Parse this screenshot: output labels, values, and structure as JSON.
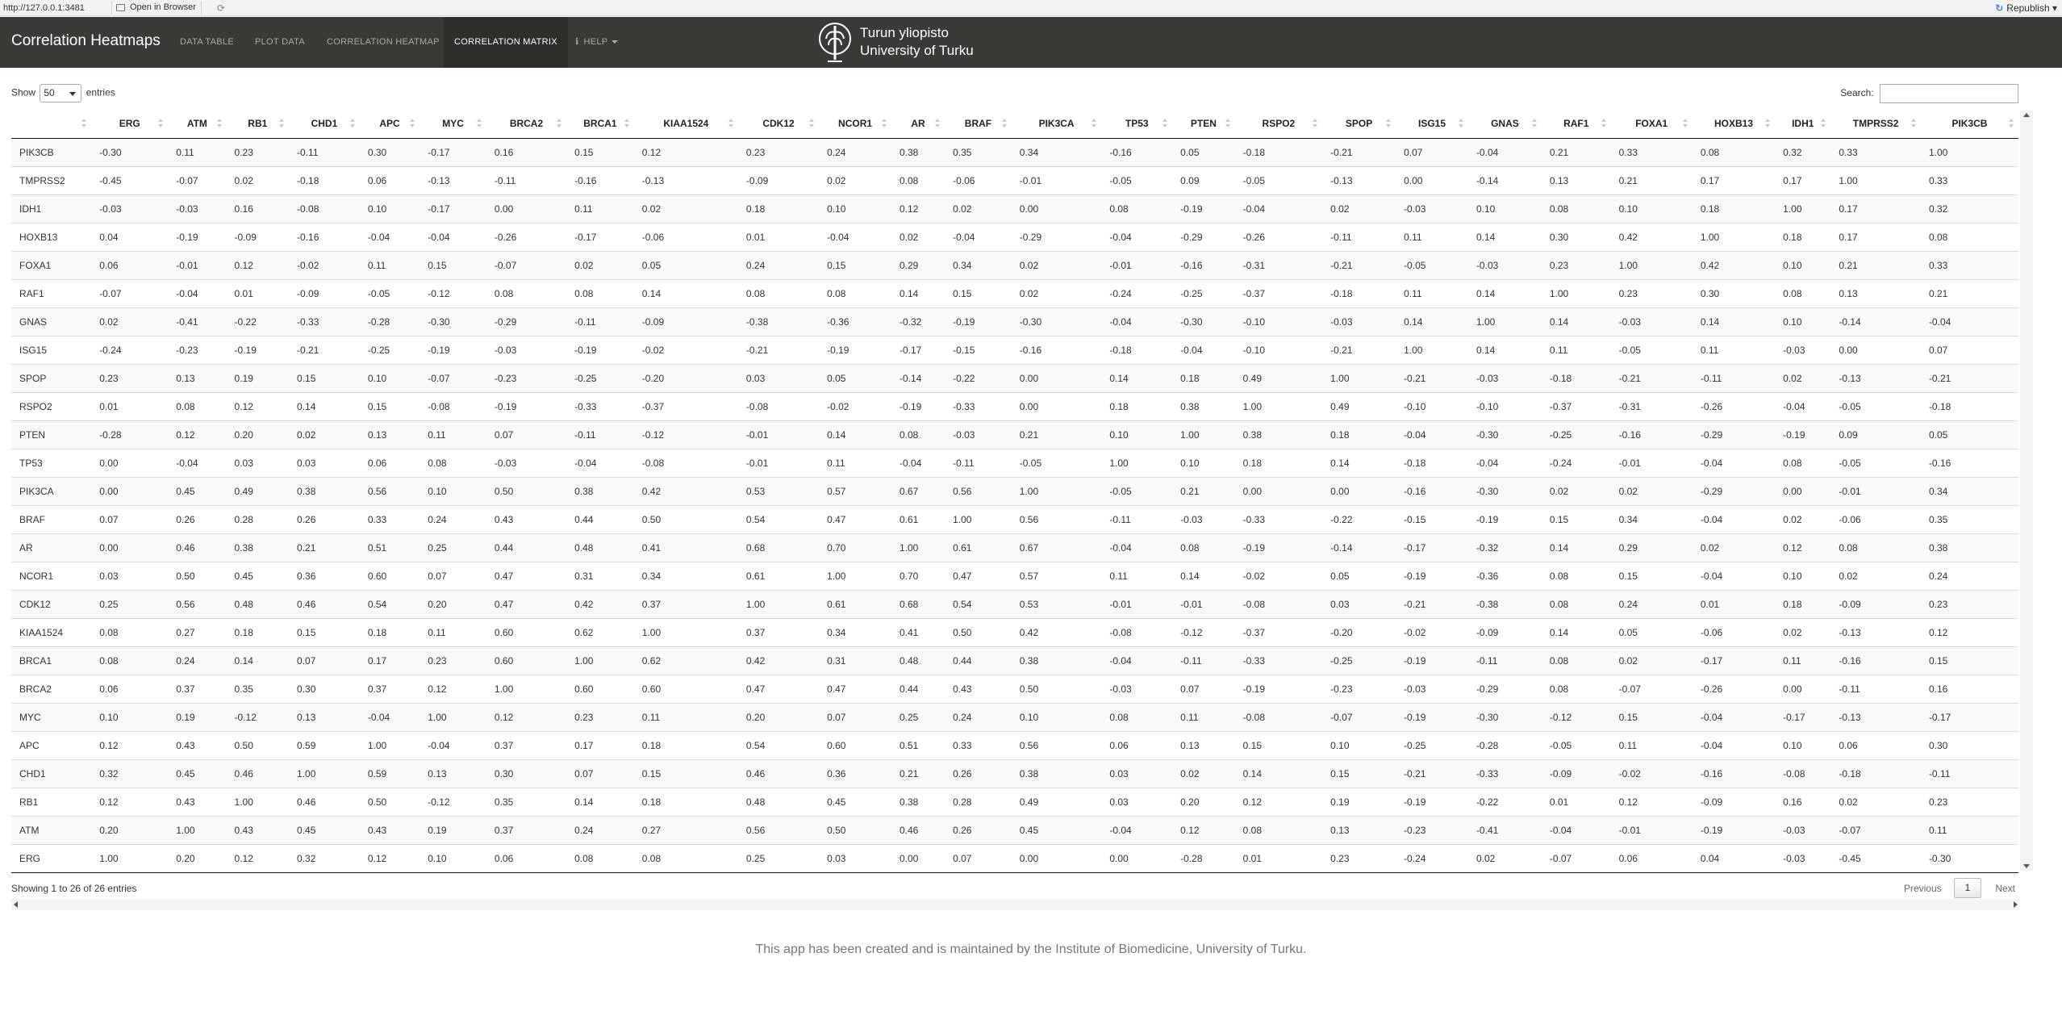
{
  "browser": {
    "url": "http://127.0.0.1:3481",
    "open_in_browser": "Open in Browser",
    "republish": "Republish"
  },
  "navbar": {
    "brand": "Correlation Heatmaps",
    "tabs": [
      {
        "label": "DATA TABLE"
      },
      {
        "label": "PLOT DATA"
      },
      {
        "label": "CORRELATION HEATMAP"
      },
      {
        "label": "CORRELATION MATRIX"
      },
      {
        "label": "HELP"
      }
    ],
    "logo_line1": "Turun yliopisto",
    "logo_line2": "University of Turku"
  },
  "controls": {
    "show_label": "Show",
    "entries_value": "50",
    "entries_label": "entries",
    "search_label": "Search:"
  },
  "table": {
    "columns": [
      "",
      "ERG",
      "ATM",
      "RB1",
      "CHD1",
      "APC",
      "MYC",
      "BRCA2",
      "BRCA1",
      "KIAA1524",
      "CDK12",
      "NCOR1",
      "AR",
      "BRAF",
      "PIK3CA",
      "TP53",
      "PTEN",
      "RSPO2",
      "SPOP",
      "ISG15",
      "GNAS",
      "RAF1",
      "FOXA1",
      "HOXB13",
      "IDH1",
      "TMPRSS2",
      "PIK3CB"
    ],
    "rows": [
      [
        "PIK3CB",
        "-0.30",
        "0.11",
        "0.23",
        "-0.11",
        "0.30",
        "-0.17",
        "0.16",
        "0.15",
        "0.12",
        "0.23",
        "0.24",
        "0.38",
        "0.35",
        "0.34",
        "-0.16",
        "0.05",
        "-0.18",
        "-0.21",
        "0.07",
        "-0.04",
        "0.21",
        "0.33",
        "0.08",
        "0.32",
        "0.33",
        "1.00"
      ],
      [
        "TMPRSS2",
        "-0.45",
        "-0.07",
        "0.02",
        "-0.18",
        "0.06",
        "-0.13",
        "-0.11",
        "-0.16",
        "-0.13",
        "-0.09",
        "0.02",
        "0.08",
        "-0.06",
        "-0.01",
        "-0.05",
        "0.09",
        "-0.05",
        "-0.13",
        "0.00",
        "-0.14",
        "0.13",
        "0.21",
        "0.17",
        "0.17",
        "1.00",
        "0.33"
      ],
      [
        "IDH1",
        "-0.03",
        "-0.03",
        "0.16",
        "-0.08",
        "0.10",
        "-0.17",
        "0.00",
        "0.11",
        "0.02",
        "0.18",
        "0.10",
        "0.12",
        "0.02",
        "0.00",
        "0.08",
        "-0.19",
        "-0.04",
        "0.02",
        "-0.03",
        "0.10",
        "0.08",
        "0.10",
        "0.18",
        "1.00",
        "0.17",
        "0.32"
      ],
      [
        "HOXB13",
        "0.04",
        "-0.19",
        "-0.09",
        "-0.16",
        "-0.04",
        "-0.04",
        "-0.26",
        "-0.17",
        "-0.06",
        "0.01",
        "-0.04",
        "0.02",
        "-0.04",
        "-0.29",
        "-0.04",
        "-0.29",
        "-0.26",
        "-0.11",
        "0.11",
        "0.14",
        "0.30",
        "0.42",
        "1.00",
        "0.18",
        "0.17",
        "0.08"
      ],
      [
        "FOXA1",
        "0.06",
        "-0.01",
        "0.12",
        "-0.02",
        "0.11",
        "0.15",
        "-0.07",
        "0.02",
        "0.05",
        "0.24",
        "0.15",
        "0.29",
        "0.34",
        "0.02",
        "-0.01",
        "-0.16",
        "-0.31",
        "-0.21",
        "-0.05",
        "-0.03",
        "0.23",
        "1.00",
        "0.42",
        "0.10",
        "0.21",
        "0.33"
      ],
      [
        "RAF1",
        "-0.07",
        "-0.04",
        "0.01",
        "-0.09",
        "-0.05",
        "-0.12",
        "0.08",
        "0.08",
        "0.14",
        "0.08",
        "0.08",
        "0.14",
        "0.15",
        "0.02",
        "-0.24",
        "-0.25",
        "-0.37",
        "-0.18",
        "0.11",
        "0.14",
        "1.00",
        "0.23",
        "0.30",
        "0.08",
        "0.13",
        "0.21"
      ],
      [
        "GNAS",
        "0.02",
        "-0.41",
        "-0.22",
        "-0.33",
        "-0.28",
        "-0.30",
        "-0.29",
        "-0.11",
        "-0.09",
        "-0.38",
        "-0.36",
        "-0.32",
        "-0.19",
        "-0.30",
        "-0.04",
        "-0.30",
        "-0.10",
        "-0.03",
        "0.14",
        "1.00",
        "0.14",
        "-0.03",
        "0.14",
        "0.10",
        "-0.14",
        "-0.04"
      ],
      [
        "ISG15",
        "-0.24",
        "-0.23",
        "-0.19",
        "-0.21",
        "-0.25",
        "-0.19",
        "-0.03",
        "-0.19",
        "-0.02",
        "-0.21",
        "-0.19",
        "-0.17",
        "-0.15",
        "-0.16",
        "-0.18",
        "-0.04",
        "-0.10",
        "-0.21",
        "1.00",
        "0.14",
        "0.11",
        "-0.05",
        "0.11",
        "-0.03",
        "0.00",
        "0.07"
      ],
      [
        "SPOP",
        "0.23",
        "0.13",
        "0.19",
        "0.15",
        "0.10",
        "-0.07",
        "-0.23",
        "-0.25",
        "-0.20",
        "0.03",
        "0.05",
        "-0.14",
        "-0.22",
        "0.00",
        "0.14",
        "0.18",
        "0.49",
        "1.00",
        "-0.21",
        "-0.03",
        "-0.18",
        "-0.21",
        "-0.11",
        "0.02",
        "-0.13",
        "-0.21"
      ],
      [
        "RSPO2",
        "0.01",
        "0.08",
        "0.12",
        "0.14",
        "0.15",
        "-0.08",
        "-0.19",
        "-0.33",
        "-0.37",
        "-0.08",
        "-0.02",
        "-0.19",
        "-0.33",
        "0.00",
        "0.18",
        "0.38",
        "1.00",
        "0.49",
        "-0.10",
        "-0.10",
        "-0.37",
        "-0.31",
        "-0.26",
        "-0.04",
        "-0.05",
        "-0.18"
      ],
      [
        "PTEN",
        "-0.28",
        "0.12",
        "0.20",
        "0.02",
        "0.13",
        "0.11",
        "0.07",
        "-0.11",
        "-0.12",
        "-0.01",
        "0.14",
        "0.08",
        "-0.03",
        "0.21",
        "0.10",
        "1.00",
        "0.38",
        "0.18",
        "-0.04",
        "-0.30",
        "-0.25",
        "-0.16",
        "-0.29",
        "-0.19",
        "0.09",
        "0.05"
      ],
      [
        "TP53",
        "0.00",
        "-0.04",
        "0.03",
        "0.03",
        "0.06",
        "0.08",
        "-0.03",
        "-0.04",
        "-0.08",
        "-0.01",
        "0.11",
        "-0.04",
        "-0.11",
        "-0.05",
        "1.00",
        "0.10",
        "0.18",
        "0.14",
        "-0.18",
        "-0.04",
        "-0.24",
        "-0.01",
        "-0.04",
        "0.08",
        "-0.05",
        "-0.16"
      ],
      [
        "PIK3CA",
        "0.00",
        "0.45",
        "0.49",
        "0.38",
        "0.56",
        "0.10",
        "0.50",
        "0.38",
        "0.42",
        "0.53",
        "0.57",
        "0.67",
        "0.56",
        "1.00",
        "-0.05",
        "0.21",
        "0.00",
        "0.00",
        "-0.16",
        "-0.30",
        "0.02",
        "0.02",
        "-0.29",
        "0.00",
        "-0.01",
        "0.34"
      ],
      [
        "BRAF",
        "0.07",
        "0.26",
        "0.28",
        "0.26",
        "0.33",
        "0.24",
        "0.43",
        "0.44",
        "0.50",
        "0.54",
        "0.47",
        "0.61",
        "1.00",
        "0.56",
        "-0.11",
        "-0.03",
        "-0.33",
        "-0.22",
        "-0.15",
        "-0.19",
        "0.15",
        "0.34",
        "-0.04",
        "0.02",
        "-0.06",
        "0.35"
      ],
      [
        "AR",
        "0.00",
        "0.46",
        "0.38",
        "0.21",
        "0.51",
        "0.25",
        "0.44",
        "0.48",
        "0.41",
        "0.68",
        "0.70",
        "1.00",
        "0.61",
        "0.67",
        "-0.04",
        "0.08",
        "-0.19",
        "-0.14",
        "-0.17",
        "-0.32",
        "0.14",
        "0.29",
        "0.02",
        "0.12",
        "0.08",
        "0.38"
      ],
      [
        "NCOR1",
        "0.03",
        "0.50",
        "0.45",
        "0.36",
        "0.60",
        "0.07",
        "0.47",
        "0.31",
        "0.34",
        "0.61",
        "1.00",
        "0.70",
        "0.47",
        "0.57",
        "0.11",
        "0.14",
        "-0.02",
        "0.05",
        "-0.19",
        "-0.36",
        "0.08",
        "0.15",
        "-0.04",
        "0.10",
        "0.02",
        "0.24"
      ],
      [
        "CDK12",
        "0.25",
        "0.56",
        "0.48",
        "0.46",
        "0.54",
        "0.20",
        "0.47",
        "0.42",
        "0.37",
        "1.00",
        "0.61",
        "0.68",
        "0.54",
        "0.53",
        "-0.01",
        "-0.01",
        "-0.08",
        "0.03",
        "-0.21",
        "-0.38",
        "0.08",
        "0.24",
        "0.01",
        "0.18",
        "-0.09",
        "0.23"
      ],
      [
        "KIAA1524",
        "0.08",
        "0.27",
        "0.18",
        "0.15",
        "0.18",
        "0.11",
        "0.60",
        "0.62",
        "1.00",
        "0.37",
        "0.34",
        "0.41",
        "0.50",
        "0.42",
        "-0.08",
        "-0.12",
        "-0.37",
        "-0.20",
        "-0.02",
        "-0.09",
        "0.14",
        "0.05",
        "-0.06",
        "0.02",
        "-0.13",
        "0.12"
      ],
      [
        "BRCA1",
        "0.08",
        "0.24",
        "0.14",
        "0.07",
        "0.17",
        "0.23",
        "0.60",
        "1.00",
        "0.62",
        "0.42",
        "0.31",
        "0.48",
        "0.44",
        "0.38",
        "-0.04",
        "-0.11",
        "-0.33",
        "-0.25",
        "-0.19",
        "-0.11",
        "0.08",
        "0.02",
        "-0.17",
        "0.11",
        "-0.16",
        "0.15"
      ],
      [
        "BRCA2",
        "0.06",
        "0.37",
        "0.35",
        "0.30",
        "0.37",
        "0.12",
        "1.00",
        "0.60",
        "0.60",
        "0.47",
        "0.47",
        "0.44",
        "0.43",
        "0.50",
        "-0.03",
        "0.07",
        "-0.19",
        "-0.23",
        "-0.03",
        "-0.29",
        "0.08",
        "-0.07",
        "-0.26",
        "0.00",
        "-0.11",
        "0.16"
      ],
      [
        "MYC",
        "0.10",
        "0.19",
        "-0.12",
        "0.13",
        "-0.04",
        "1.00",
        "0.12",
        "0.23",
        "0.11",
        "0.20",
        "0.07",
        "0.25",
        "0.24",
        "0.10",
        "0.08",
        "0.11",
        "-0.08",
        "-0.07",
        "-0.19",
        "-0.30",
        "-0.12",
        "0.15",
        "-0.04",
        "-0.17",
        "-0.13",
        "-0.17"
      ],
      [
        "APC",
        "0.12",
        "0.43",
        "0.50",
        "0.59",
        "1.00",
        "-0.04",
        "0.37",
        "0.17",
        "0.18",
        "0.54",
        "0.60",
        "0.51",
        "0.33",
        "0.56",
        "0.06",
        "0.13",
        "0.15",
        "0.10",
        "-0.25",
        "-0.28",
        "-0.05",
        "0.11",
        "-0.04",
        "0.10",
        "0.06",
        "0.30"
      ],
      [
        "CHD1",
        "0.32",
        "0.45",
        "0.46",
        "1.00",
        "0.59",
        "0.13",
        "0.30",
        "0.07",
        "0.15",
        "0.46",
        "0.36",
        "0.21",
        "0.26",
        "0.38",
        "0.03",
        "0.02",
        "0.14",
        "0.15",
        "-0.21",
        "-0.33",
        "-0.09",
        "-0.02",
        "-0.16",
        "-0.08",
        "-0.18",
        "-0.11"
      ],
      [
        "RB1",
        "0.12",
        "0.43",
        "1.00",
        "0.46",
        "0.50",
        "-0.12",
        "0.35",
        "0.14",
        "0.18",
        "0.48",
        "0.45",
        "0.38",
        "0.28",
        "0.49",
        "0.03",
        "0.20",
        "0.12",
        "0.19",
        "-0.19",
        "-0.22",
        "0.01",
        "0.12",
        "-0.09",
        "0.16",
        "0.02",
        "0.23"
      ],
      [
        "ATM",
        "0.20",
        "1.00",
        "0.43",
        "0.45",
        "0.43",
        "0.19",
        "0.37",
        "0.24",
        "0.27",
        "0.56",
        "0.50",
        "0.46",
        "0.26",
        "0.45",
        "-0.04",
        "0.12",
        "0.08",
        "0.13",
        "-0.23",
        "-0.41",
        "-0.04",
        "-0.01",
        "-0.19",
        "-0.03",
        "-0.07",
        "0.11"
      ],
      [
        "ERG",
        "1.00",
        "0.20",
        "0.12",
        "0.32",
        "0.12",
        "0.10",
        "0.06",
        "0.08",
        "0.08",
        "0.25",
        "0.03",
        "0.00",
        "0.07",
        "0.00",
        "0.00",
        "-0.28",
        "0.01",
        "0.23",
        "-0.24",
        "0.02",
        "-0.07",
        "0.06",
        "0.04",
        "-0.03",
        "-0.45",
        "-0.30"
      ]
    ]
  },
  "info": "Showing 1 to 26 of 26 entries",
  "pagination": {
    "previous": "Previous",
    "page": "1",
    "next": "Next"
  },
  "footer": "This app has been created and is maintained by the Institute of Biomedicine, University of Turku."
}
